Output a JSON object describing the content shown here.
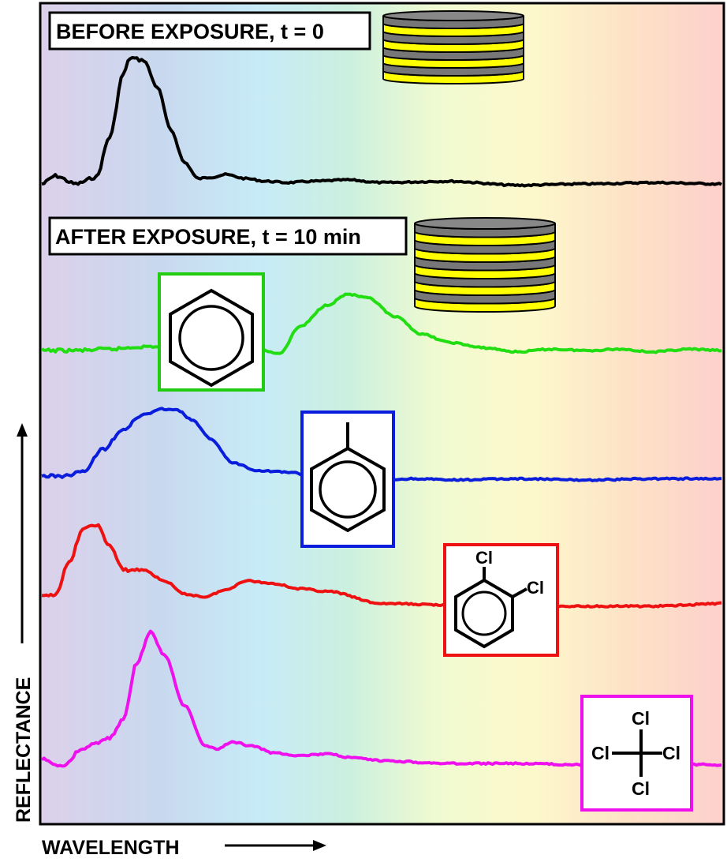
{
  "chart_data": {
    "type": "line",
    "xlabel": "WAVELENGTH",
    "ylabel": "REFLECTANCE",
    "grid": false,
    "legend": "none",
    "background": "visible spectrum gradient (violet to red)",
    "annotations": [
      {
        "text": "BEFORE EXPOSURE, t = 0",
        "icon": "thin-film-stack-icon"
      },
      {
        "text": "AFTER EXPOSURE, t = 10 min",
        "icon": "swollen-film-stack-icon"
      }
    ],
    "series": [
      {
        "color": "#000000",
        "molecule_icon": "none",
        "x": [
          0.0,
          0.02,
          0.05,
          0.08,
          0.1,
          0.12,
          0.13,
          0.15,
          0.17,
          0.19,
          0.21,
          0.23,
          0.25,
          0.27,
          0.3,
          0.33,
          0.36,
          0.4,
          0.45,
          0.5,
          0.6,
          0.7,
          0.8,
          0.9,
          1.0
        ],
        "y": [
          0.0,
          0.06,
          0.0,
          0.05,
          0.35,
          0.82,
          0.94,
          0.92,
          0.72,
          0.4,
          0.16,
          0.04,
          0.05,
          0.07,
          0.04,
          0.02,
          0.01,
          0.02,
          0.03,
          0.01,
          0.02,
          -0.01,
          0.0,
          0.01,
          0.0
        ]
      },
      {
        "color": "#22dd11",
        "molecule_icon": "benzene-icon",
        "x": [
          0.0,
          0.05,
          0.1,
          0.15,
          0.2,
          0.25,
          0.3,
          0.35,
          0.38,
          0.42,
          0.45,
          0.48,
          0.52,
          0.56,
          0.6,
          0.65,
          0.7,
          0.75,
          0.8,
          0.85,
          0.9,
          0.95,
          1.0
        ],
        "y": [
          0.0,
          0.0,
          0.01,
          0.03,
          0.02,
          0.06,
          0.03,
          -0.02,
          0.18,
          0.34,
          0.42,
          0.39,
          0.25,
          0.12,
          0.06,
          0.02,
          -0.01,
          0.01,
          0.0,
          0.01,
          -0.01,
          0.01,
          0.0
        ]
      },
      {
        "color": "#0a1ddd",
        "molecule_icon": "toluene-icon",
        "x": [
          0.0,
          0.03,
          0.06,
          0.09,
          0.12,
          0.15,
          0.18,
          0.2,
          0.22,
          0.25,
          0.28,
          0.32,
          0.36,
          0.4,
          0.45,
          0.5,
          0.55,
          0.6,
          0.7,
          0.8,
          0.9,
          1.0
        ],
        "y": [
          0.0,
          0.0,
          0.03,
          0.2,
          0.35,
          0.46,
          0.5,
          0.49,
          0.42,
          0.27,
          0.1,
          0.04,
          0.03,
          0.0,
          -0.02,
          -0.03,
          -0.02,
          -0.03,
          -0.02,
          -0.03,
          -0.02,
          -0.02
        ]
      },
      {
        "color": "#ee1111",
        "molecule_icon": "dichlorobenzene-icon",
        "x": [
          0.0,
          0.02,
          0.04,
          0.06,
          0.08,
          0.1,
          0.12,
          0.15,
          0.18,
          0.21,
          0.24,
          0.27,
          0.3,
          0.34,
          0.38,
          0.42,
          0.5,
          0.6,
          0.7,
          0.8,
          0.9,
          1.0
        ],
        "y": [
          0.0,
          0.02,
          0.25,
          0.5,
          0.54,
          0.38,
          0.2,
          0.2,
          0.12,
          0.02,
          0.0,
          0.05,
          0.12,
          0.1,
          0.06,
          0.04,
          -0.05,
          -0.06,
          -0.08,
          -0.07,
          -0.07,
          -0.05
        ]
      },
      {
        "color": "#ee11ee",
        "molecule_icon": "carbon-tetrachloride-icon",
        "x": [
          0.0,
          0.03,
          0.06,
          0.08,
          0.1,
          0.12,
          0.14,
          0.16,
          0.18,
          0.21,
          0.24,
          0.26,
          0.28,
          0.31,
          0.34,
          0.38,
          0.42,
          0.46,
          0.5,
          0.6,
          0.7,
          0.8,
          0.9,
          1.0
        ],
        "y": [
          0.0,
          -0.05,
          0.08,
          0.12,
          0.16,
          0.3,
          0.72,
          0.95,
          0.78,
          0.4,
          0.1,
          0.08,
          0.13,
          0.1,
          0.05,
          0.03,
          0.04,
          0.01,
          -0.01,
          -0.03,
          -0.03,
          -0.04,
          -0.03,
          -0.04
        ]
      }
    ]
  },
  "labels": {
    "before": "BEFORE EXPOSURE, t = 0",
    "after": "AFTER EXPOSURE, t = 10 min",
    "xlabel": "WAVELENGTH",
    "ylabel": "REFLECTANCE",
    "cl1": "Cl",
    "cl2": "Cl",
    "cl_top": "Cl",
    "cl_left": "Cl",
    "cl_right": "Cl",
    "cl_bottom": "Cl"
  }
}
